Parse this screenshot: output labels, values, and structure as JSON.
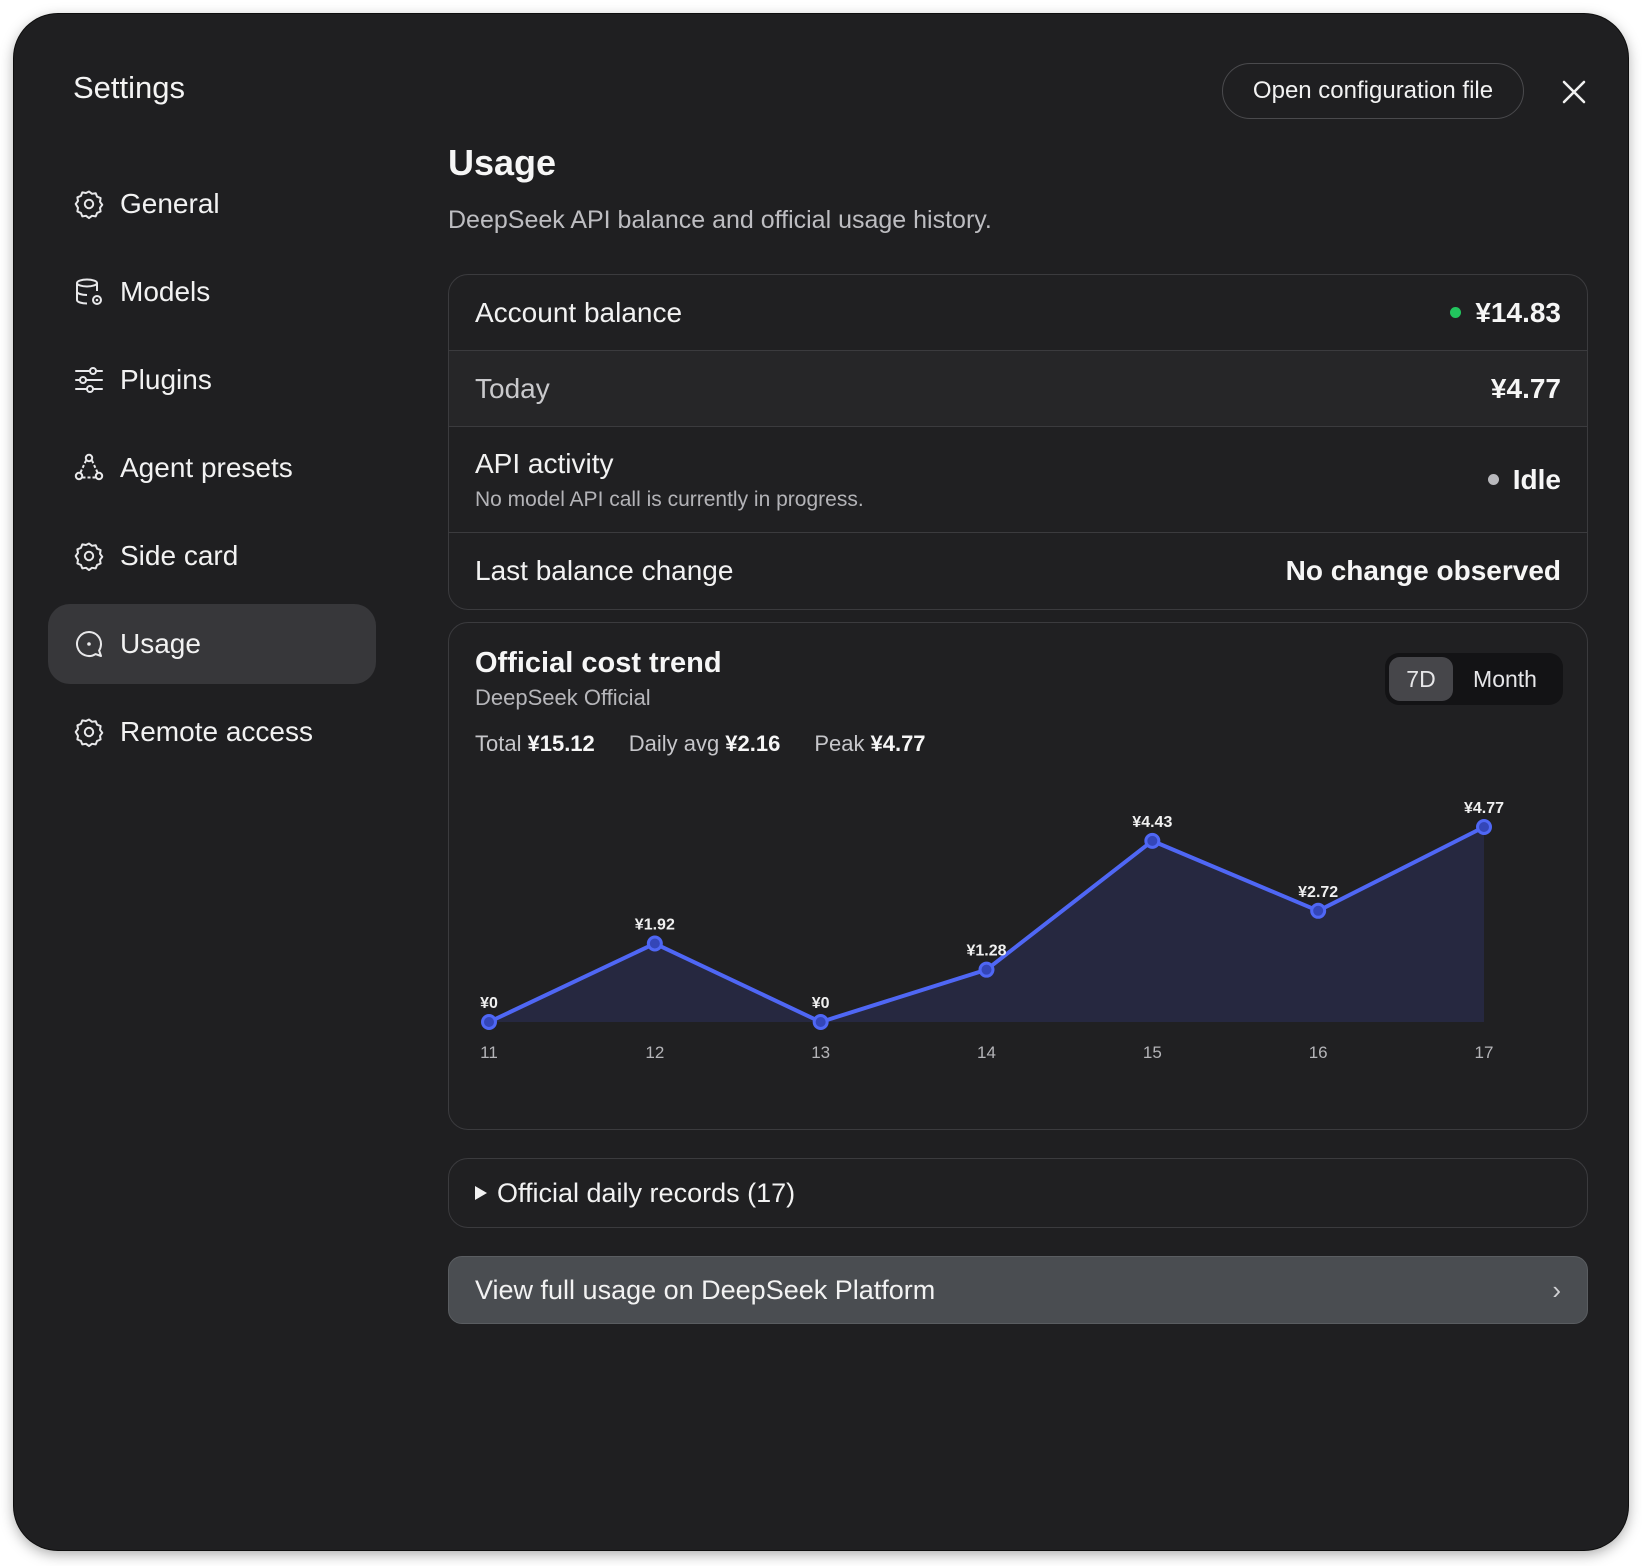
{
  "window": {
    "title": "Settings"
  },
  "header": {
    "open_config_label": "Open configuration file",
    "close_icon": "close-icon"
  },
  "sidebar": {
    "items": [
      {
        "label": "General",
        "icon": "gear-icon",
        "active": false
      },
      {
        "label": "Models",
        "icon": "database-gear-icon",
        "active": false
      },
      {
        "label": "Plugins",
        "icon": "sliders-icon",
        "active": false
      },
      {
        "label": "Agent presets",
        "icon": "agent-network-icon",
        "active": false
      },
      {
        "label": "Side card",
        "icon": "gear-icon",
        "active": false
      },
      {
        "label": "Usage",
        "icon": "usage-chat-icon",
        "active": true
      },
      {
        "label": "Remote access",
        "icon": "gear-icon",
        "active": false
      }
    ]
  },
  "main": {
    "title": "Usage",
    "subtitle": "DeepSeek API balance and official usage history.",
    "balance": {
      "account_label": "Account balance",
      "account_value": "¥14.83",
      "account_status_color": "#22c55e",
      "today_label": "Today",
      "today_value": "¥4.77",
      "activity_label": "API activity",
      "activity_desc": "No model API call is currently in progress.",
      "activity_value": "Idle",
      "activity_status_color": "#b8b8bc",
      "last_change_label": "Last balance change",
      "last_change_value": "No change observed"
    },
    "trend": {
      "title": "Official cost trend",
      "source": "DeepSeek Official",
      "range_options": [
        "7D",
        "Month"
      ],
      "range_selected": "7D",
      "stats": {
        "total_label": "Total",
        "total_value": "¥15.12",
        "avg_label": "Daily avg",
        "avg_value": "¥2.16",
        "peak_label": "Peak",
        "peak_value": "¥4.77"
      }
    },
    "records": {
      "label": "Official daily records (17)",
      "icon": "triangle-right-icon"
    },
    "platform_link": {
      "label": "View full usage on DeepSeek Platform",
      "chevron": "›"
    }
  },
  "colors": {
    "accent": "#4f67f5",
    "background": "#1f1f21",
    "card_border": "#3b3b3e"
  },
  "chart_data": {
    "type": "area",
    "x": [
      "11",
      "12",
      "13",
      "14",
      "15",
      "16",
      "17"
    ],
    "values": [
      0,
      1.92,
      0,
      1.28,
      4.43,
      2.72,
      4.77
    ],
    "data_labels": [
      "¥0",
      "¥1.92",
      "¥0",
      "¥1.28",
      "¥4.43",
      "¥2.72",
      "¥4.77"
    ],
    "ylim": [
      0,
      4.77
    ],
    "grid": false,
    "legend": "none"
  }
}
